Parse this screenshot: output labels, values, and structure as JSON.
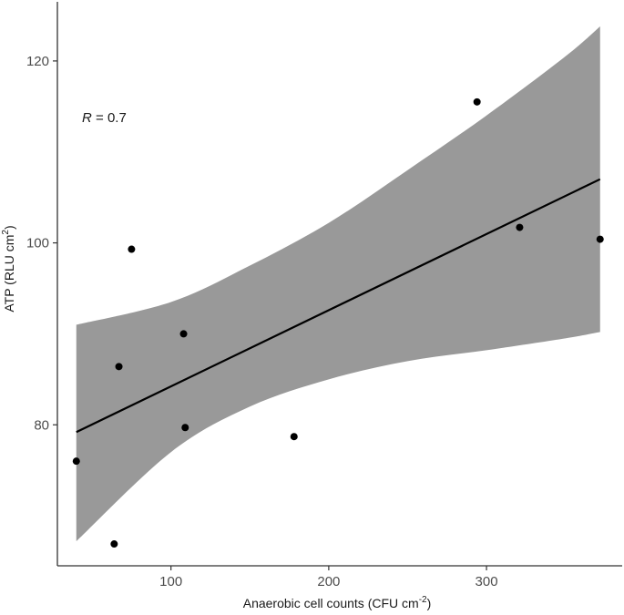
{
  "chart_data": {
    "type": "scatter",
    "title": "",
    "xlabel": {
      "main": "Anaerobic cell counts (CFU cm",
      "sup": "-2",
      "tail": ")"
    },
    "ylabel": {
      "main": "ATP (RLU cm",
      "sup": "2",
      "tail": ")"
    },
    "xlim": [
      28,
      386
    ],
    "ylim": [
      64.5,
      126.5
    ],
    "x_ticks": [
      100,
      200,
      300
    ],
    "y_ticks": [
      80,
      100,
      120
    ],
    "x_tick_labels": [
      "100",
      "200",
      "300"
    ],
    "y_tick_labels": [
      "80",
      "100",
      "120"
    ],
    "grid": false,
    "annotation": {
      "italic": "R",
      "rest": " = 0.7"
    },
    "points": [
      {
        "x": 40,
        "y": 76.0
      },
      {
        "x": 64,
        "y": 66.9
      },
      {
        "x": 67,
        "y": 86.4
      },
      {
        "x": 75,
        "y": 99.3
      },
      {
        "x": 108,
        "y": 90.0
      },
      {
        "x": 109,
        "y": 79.7
      },
      {
        "x": 178,
        "y": 78.7
      },
      {
        "x": 294,
        "y": 115.5
      },
      {
        "x": 321,
        "y": 101.7
      },
      {
        "x": 372,
        "y": 100.4
      }
    ],
    "fit_line": {
      "x": [
        40,
        372
      ],
      "y": [
        79.2,
        107.0
      ]
    },
    "confidence_band": {
      "x": [
        40,
        100,
        150,
        200,
        250,
        300,
        350,
        372
      ],
      "lower": [
        67.2,
        77.0,
        82.0,
        85.0,
        87.0,
        88.2,
        89.5,
        90.2
      ],
      "upper": [
        91.0,
        93.5,
        97.5,
        102.2,
        108.0,
        114.0,
        120.5,
        123.8
      ]
    },
    "colors": {
      "band": "#999999",
      "points": "#000000",
      "line": "#000000",
      "axis": "#333333"
    }
  }
}
